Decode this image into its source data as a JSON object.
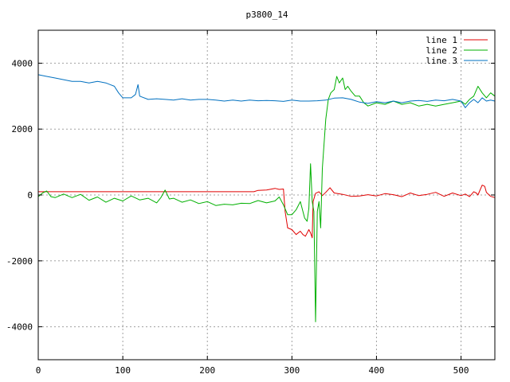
{
  "chart_data": {
    "type": "line",
    "title": "p3800_14",
    "xlabel": "",
    "ylabel": "",
    "xlim": [
      0,
      540
    ],
    "ylim": [
      -5000,
      5000
    ],
    "x_ticks": [
      0,
      100,
      200,
      300,
      400,
      500
    ],
    "y_ticks": [
      -4000,
      -2000,
      0,
      2000,
      4000
    ],
    "grid": true,
    "legend_position": "top-right",
    "series": [
      {
        "name": "line 1",
        "color": "#e00000",
        "points": [
          [
            0,
            100
          ],
          [
            40,
            100
          ],
          [
            80,
            100
          ],
          [
            120,
            100
          ],
          [
            160,
            100
          ],
          [
            200,
            100
          ],
          [
            240,
            100
          ],
          [
            255,
            100
          ],
          [
            260,
            140
          ],
          [
            270,
            150
          ],
          [
            280,
            200
          ],
          [
            285,
            170
          ],
          [
            290,
            180
          ],
          [
            292,
            -500
          ],
          [
            295,
            -1000
          ],
          [
            300,
            -1050
          ],
          [
            305,
            -1200
          ],
          [
            310,
            -1100
          ],
          [
            313,
            -1200
          ],
          [
            316,
            -1250
          ],
          [
            320,
            -1050
          ],
          [
            322,
            -1150
          ],
          [
            324,
            -1300
          ],
          [
            325,
            -200
          ],
          [
            328,
            50
          ],
          [
            332,
            100
          ],
          [
            336,
            -20
          ],
          [
            340,
            80
          ],
          [
            345,
            220
          ],
          [
            350,
            60
          ],
          [
            360,
            20
          ],
          [
            370,
            -40
          ],
          [
            380,
            -30
          ],
          [
            390,
            10
          ],
          [
            400,
            -30
          ],
          [
            410,
            40
          ],
          [
            420,
            10
          ],
          [
            430,
            -50
          ],
          [
            440,
            60
          ],
          [
            450,
            -20
          ],
          [
            460,
            20
          ],
          [
            470,
            80
          ],
          [
            480,
            -40
          ],
          [
            490,
            60
          ],
          [
            500,
            -20
          ],
          [
            505,
            30
          ],
          [
            510,
            -50
          ],
          [
            515,
            100
          ],
          [
            518,
            60
          ],
          [
            520,
            0
          ],
          [
            522,
            120
          ],
          [
            525,
            300
          ],
          [
            528,
            260
          ],
          [
            530,
            80
          ],
          [
            535,
            -40
          ],
          [
            540,
            -80
          ]
        ]
      },
      {
        "name": "line 2",
        "color": "#00b000",
        "points": [
          [
            0,
            -50
          ],
          [
            5,
            60
          ],
          [
            10,
            120
          ],
          [
            15,
            -50
          ],
          [
            20,
            -80
          ],
          [
            30,
            30
          ],
          [
            40,
            -80
          ],
          [
            50,
            20
          ],
          [
            60,
            -160
          ],
          [
            70,
            -60
          ],
          [
            80,
            -220
          ],
          [
            90,
            -100
          ],
          [
            100,
            -180
          ],
          [
            110,
            -30
          ],
          [
            120,
            -150
          ],
          [
            130,
            -100
          ],
          [
            140,
            -240
          ],
          [
            145,
            -80
          ],
          [
            150,
            150
          ],
          [
            155,
            -120
          ],
          [
            160,
            -100
          ],
          [
            170,
            -220
          ],
          [
            180,
            -150
          ],
          [
            190,
            -260
          ],
          [
            200,
            -200
          ],
          [
            210,
            -320
          ],
          [
            220,
            -280
          ],
          [
            230,
            -300
          ],
          [
            240,
            -250
          ],
          [
            250,
            -260
          ],
          [
            260,
            -170
          ],
          [
            270,
            -240
          ],
          [
            280,
            -180
          ],
          [
            285,
            -60
          ],
          [
            290,
            -300
          ],
          [
            295,
            -600
          ],
          [
            300,
            -600
          ],
          [
            305,
            -450
          ],
          [
            310,
            -200
          ],
          [
            315,
            -700
          ],
          [
            318,
            -800
          ],
          [
            320,
            -400
          ],
          [
            322,
            950
          ],
          [
            324,
            -200
          ],
          [
            326,
            -500
          ],
          [
            328,
            -3850
          ],
          [
            330,
            -500
          ],
          [
            332,
            -200
          ],
          [
            334,
            -1000
          ],
          [
            336,
            800
          ],
          [
            340,
            2300
          ],
          [
            343,
            2900
          ],
          [
            346,
            3100
          ],
          [
            350,
            3200
          ],
          [
            353,
            3600
          ],
          [
            356,
            3400
          ],
          [
            360,
            3550
          ],
          [
            363,
            3200
          ],
          [
            366,
            3300
          ],
          [
            370,
            3150
          ],
          [
            375,
            3000
          ],
          [
            380,
            3000
          ],
          [
            385,
            2800
          ],
          [
            390,
            2700
          ],
          [
            400,
            2800
          ],
          [
            410,
            2750
          ],
          [
            420,
            2850
          ],
          [
            430,
            2750
          ],
          [
            440,
            2800
          ],
          [
            450,
            2700
          ],
          [
            460,
            2750
          ],
          [
            470,
            2700
          ],
          [
            480,
            2750
          ],
          [
            490,
            2800
          ],
          [
            500,
            2850
          ],
          [
            505,
            2750
          ],
          [
            510,
            2900
          ],
          [
            515,
            3000
          ],
          [
            520,
            3300
          ],
          [
            525,
            3100
          ],
          [
            530,
            2950
          ],
          [
            535,
            3100
          ],
          [
            540,
            3000
          ]
        ]
      },
      {
        "name": "line 3",
        "color": "#0070c0",
        "points": [
          [
            0,
            3650
          ],
          [
            10,
            3600
          ],
          [
            20,
            3550
          ],
          [
            30,
            3500
          ],
          [
            40,
            3450
          ],
          [
            50,
            3450
          ],
          [
            60,
            3400
          ],
          [
            70,
            3450
          ],
          [
            80,
            3400
          ],
          [
            85,
            3350
          ],
          [
            90,
            3300
          ],
          [
            95,
            3100
          ],
          [
            100,
            2950
          ],
          [
            110,
            2950
          ],
          [
            115,
            3050
          ],
          [
            118,
            3350
          ],
          [
            120,
            3000
          ],
          [
            130,
            2900
          ],
          [
            140,
            2920
          ],
          [
            150,
            2900
          ],
          [
            160,
            2880
          ],
          [
            170,
            2920
          ],
          [
            180,
            2880
          ],
          [
            190,
            2900
          ],
          [
            200,
            2900
          ],
          [
            210,
            2880
          ],
          [
            220,
            2850
          ],
          [
            230,
            2880
          ],
          [
            240,
            2850
          ],
          [
            250,
            2880
          ],
          [
            260,
            2860
          ],
          [
            270,
            2870
          ],
          [
            280,
            2860
          ],
          [
            290,
            2840
          ],
          [
            300,
            2880
          ],
          [
            310,
            2850
          ],
          [
            320,
            2850
          ],
          [
            330,
            2860
          ],
          [
            340,
            2880
          ],
          [
            350,
            2940
          ],
          [
            360,
            2950
          ],
          [
            370,
            2900
          ],
          [
            380,
            2820
          ],
          [
            390,
            2780
          ],
          [
            400,
            2830
          ],
          [
            410,
            2800
          ],
          [
            420,
            2850
          ],
          [
            430,
            2800
          ],
          [
            440,
            2850
          ],
          [
            450,
            2870
          ],
          [
            460,
            2840
          ],
          [
            470,
            2880
          ],
          [
            480,
            2860
          ],
          [
            490,
            2900
          ],
          [
            500,
            2850
          ],
          [
            505,
            2650
          ],
          [
            510,
            2800
          ],
          [
            515,
            2900
          ],
          [
            520,
            2800
          ],
          [
            525,
            2950
          ],
          [
            530,
            2850
          ],
          [
            535,
            2880
          ],
          [
            540,
            2850
          ]
        ]
      }
    ]
  }
}
